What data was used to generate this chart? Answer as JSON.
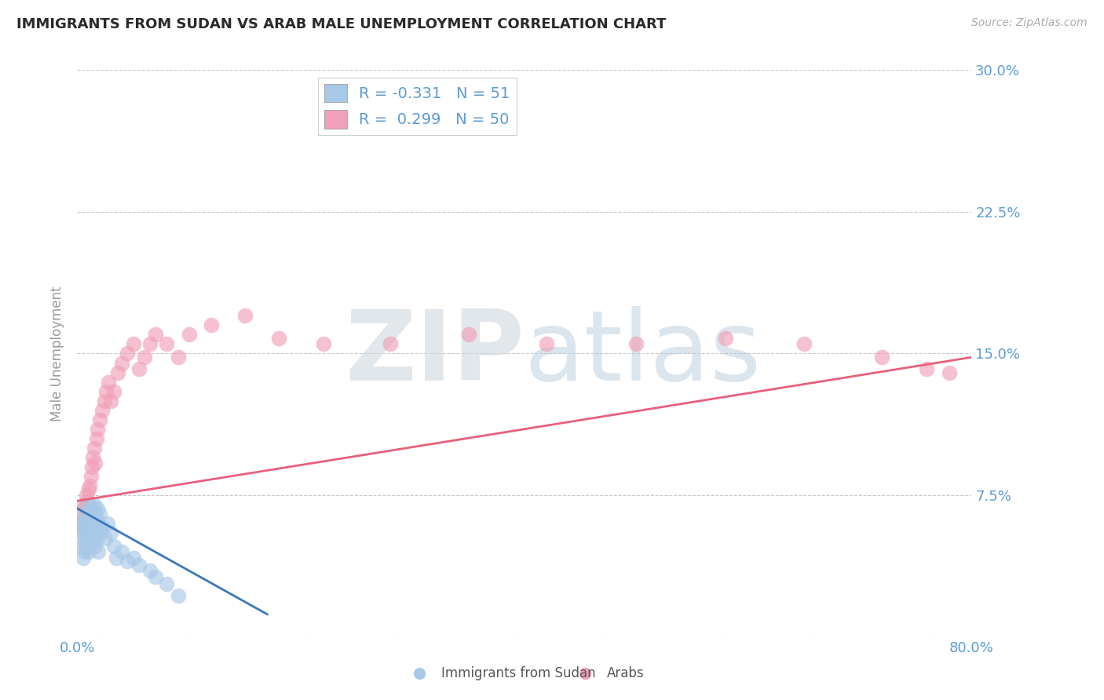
{
  "title": "IMMIGRANTS FROM SUDAN VS ARAB MALE UNEMPLOYMENT CORRELATION CHART",
  "source_text": "Source: ZipAtlas.com",
  "ylabel": "Male Unemployment",
  "xlim": [
    0.0,
    0.8
  ],
  "ylim": [
    0.0,
    0.3
  ],
  "xticks": [
    0.0,
    0.1,
    0.2,
    0.3,
    0.4,
    0.5,
    0.6,
    0.7,
    0.8
  ],
  "xticklabels": [
    "0.0%",
    "",
    "",
    "",
    "",
    "",
    "",
    "",
    "80.0%"
  ],
  "yticks": [
    0.0,
    0.075,
    0.15,
    0.225,
    0.3
  ],
  "yticklabels": [
    "",
    "7.5%",
    "15.0%",
    "22.5%",
    "30.0%"
  ],
  "background_color": "#ffffff",
  "grid_color": "#c8c8c8",
  "axis_color": "#5b9bd5",
  "title_color": "#2a2a2a",
  "blue_color": "#a8c8e8",
  "pink_color": "#f0a0b8",
  "blue_line_color": "#3a78b8",
  "pink_line_color": "#e8607a",
  "legend_blue_label": "Immigrants from Sudan",
  "legend_pink_label": "Arabs",
  "R_blue": -0.331,
  "N_blue": 51,
  "R_pink": 0.299,
  "N_pink": 50,
  "blue_trend_x": [
    0.0,
    0.17
  ],
  "blue_trend_y": [
    0.068,
    0.012
  ],
  "pink_trend_x": [
    0.0,
    0.8
  ],
  "pink_trend_y": [
    0.072,
    0.148
  ],
  "blue_scatter_x": [
    0.003,
    0.004,
    0.005,
    0.005,
    0.006,
    0.006,
    0.007,
    0.007,
    0.008,
    0.008,
    0.009,
    0.009,
    0.01,
    0.01,
    0.01,
    0.01,
    0.01,
    0.011,
    0.011,
    0.012,
    0.012,
    0.013,
    0.013,
    0.014,
    0.014,
    0.015,
    0.015,
    0.016,
    0.016,
    0.017,
    0.017,
    0.018,
    0.018,
    0.019,
    0.019,
    0.02,
    0.02,
    0.022,
    0.025,
    0.027,
    0.03,
    0.033,
    0.035,
    0.04,
    0.045,
    0.05,
    0.055,
    0.065,
    0.07,
    0.08,
    0.09
  ],
  "blue_scatter_y": [
    0.055,
    0.048,
    0.06,
    0.042,
    0.058,
    0.045,
    0.065,
    0.05,
    0.055,
    0.048,
    0.062,
    0.052,
    0.07,
    0.06,
    0.052,
    0.048,
    0.045,
    0.058,
    0.065,
    0.062,
    0.055,
    0.068,
    0.05,
    0.06,
    0.053,
    0.07,
    0.058,
    0.065,
    0.048,
    0.062,
    0.055,
    0.068,
    0.052,
    0.06,
    0.045,
    0.065,
    0.055,
    0.058,
    0.052,
    0.06,
    0.055,
    0.048,
    0.042,
    0.045,
    0.04,
    0.042,
    0.038,
    0.035,
    0.032,
    0.028,
    0.022
  ],
  "pink_scatter_x": [
    0.003,
    0.004,
    0.005,
    0.006,
    0.006,
    0.007,
    0.008,
    0.009,
    0.009,
    0.01,
    0.01,
    0.011,
    0.012,
    0.013,
    0.014,
    0.015,
    0.016,
    0.017,
    0.018,
    0.02,
    0.022,
    0.024,
    0.026,
    0.028,
    0.03,
    0.033,
    0.036,
    0.04,
    0.045,
    0.05,
    0.055,
    0.06,
    0.065,
    0.07,
    0.08,
    0.09,
    0.1,
    0.12,
    0.15,
    0.18,
    0.22,
    0.28,
    0.35,
    0.42,
    0.5,
    0.58,
    0.65,
    0.72,
    0.76,
    0.78
  ],
  "pink_scatter_y": [
    0.06,
    0.065,
    0.055,
    0.07,
    0.062,
    0.068,
    0.075,
    0.065,
    0.072,
    0.078,
    0.068,
    0.08,
    0.085,
    0.09,
    0.095,
    0.1,
    0.092,
    0.105,
    0.11,
    0.115,
    0.12,
    0.125,
    0.13,
    0.135,
    0.125,
    0.13,
    0.14,
    0.145,
    0.15,
    0.155,
    0.142,
    0.148,
    0.155,
    0.16,
    0.155,
    0.148,
    0.16,
    0.165,
    0.17,
    0.158,
    0.155,
    0.155,
    0.16,
    0.155,
    0.155,
    0.158,
    0.155,
    0.148,
    0.142,
    0.14
  ]
}
